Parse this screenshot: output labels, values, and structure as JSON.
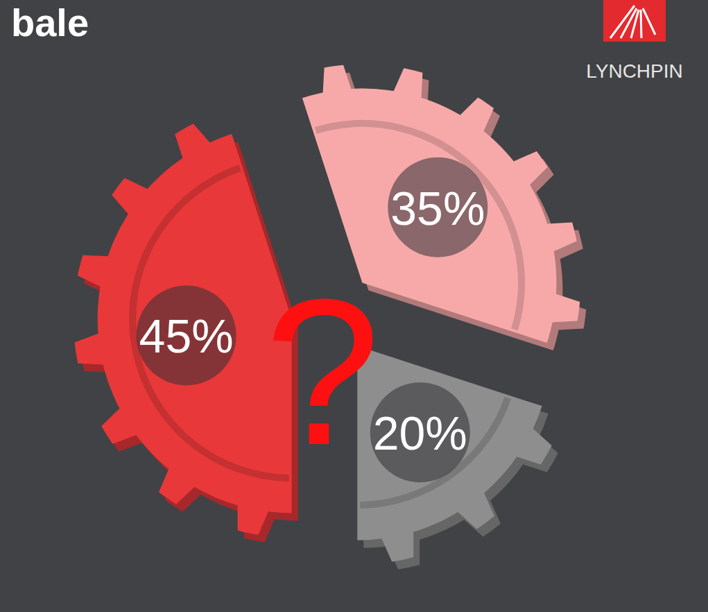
{
  "chart_data": {
    "type": "pie",
    "title": "bale",
    "values": [
      45,
      35,
      20
    ],
    "value_labels": [
      "45%",
      "35%",
      "20%"
    ],
    "colors": [
      "#e8383a",
      "#f7a9aa",
      "#8e8e8e"
    ],
    "data_labels": true,
    "annotation": "?"
  },
  "logo": {
    "text": "LYNCHPIN"
  }
}
